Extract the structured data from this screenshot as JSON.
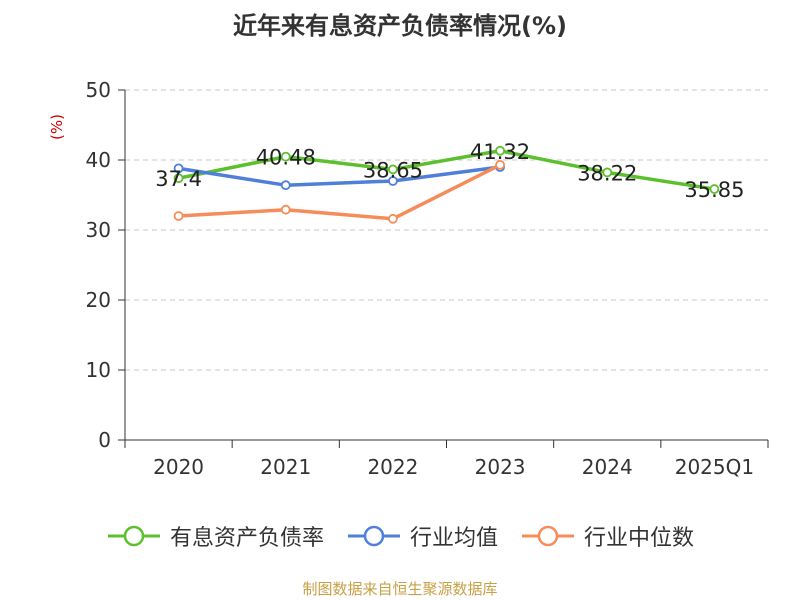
{
  "chart_data": {
    "type": "line",
    "title": "近年来有息资产负债率情况(%)",
    "ylabel": "(%)",
    "categories": [
      "2020",
      "2021",
      "2022",
      "2023",
      "2024",
      "2025Q1"
    ],
    "ylim": [
      0,
      50
    ],
    "yticks": [
      0,
      10,
      20,
      30,
      40,
      50
    ],
    "grid": true,
    "legend_position": "bottom",
    "series": [
      {
        "name": "有息资产负债率",
        "color": "#5cc02e",
        "values": [
          37.4,
          40.48,
          38.65,
          41.32,
          38.22,
          35.85
        ],
        "labels": [
          "37.4",
          "40.48",
          "38.65",
          "41.32",
          "38.22",
          "35.85"
        ]
      },
      {
        "name": "行业均值",
        "color": "#4f7fd9",
        "values": [
          38.8,
          36.4,
          37.0,
          39.0,
          null,
          null
        ]
      },
      {
        "name": "行业中位数",
        "color": "#f58c5a",
        "values": [
          32.0,
          32.9,
          31.6,
          39.3,
          null,
          null
        ]
      }
    ]
  },
  "source": "制图数据来自恒生聚源数据库"
}
